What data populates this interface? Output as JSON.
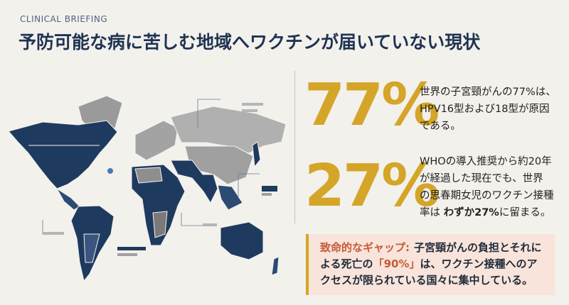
{
  "header": {
    "kicker": "CLINICAL BRIEFING",
    "title": "予防可能な病に苦しむ地域へワクチンが届いていない現状"
  },
  "stats": [
    {
      "value": "77%",
      "lines": [
        "世界の子宮頸がんの77%は、",
        "HPV16型および18型が原因",
        "である。"
      ]
    },
    {
      "value": "27%",
      "lines": [
        "WHOの導入推奨から約20年",
        "が経過した現在でも、世界",
        "の思春期女児のワクチン接種"
      ],
      "last_line": {
        "before": "率は",
        "bold": "わずか27%",
        "after": "に留まる。"
      }
    }
  ],
  "callout": {
    "label": "致命的なギャップ:",
    "text_1": "子宮頸がんの負担とそれによる死亡の",
    "highlight": "「90%」",
    "text_2": "は、ワクチン接種へのアクセスが限られている国々に集中している。"
  }
}
